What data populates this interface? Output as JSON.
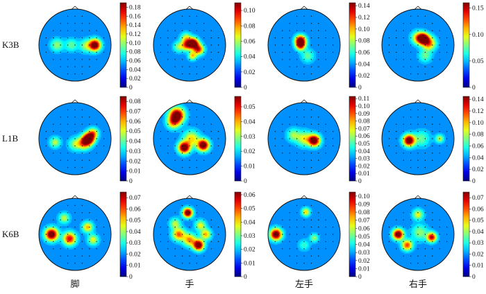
{
  "chart_data": {
    "type": "heatmap",
    "subtype": "eeg-scalp-topography-grid",
    "colormap": "jet",
    "rows": [
      "K3B",
      "L1B",
      "K6B"
    ],
    "cols": [
      "脚",
      "手",
      "左手",
      "右手"
    ],
    "panels": [
      {
        "row": 0,
        "col": 0,
        "vmin": 0,
        "vmax": 0.19,
        "ticks": [
          "0",
          "0.02",
          "0.04",
          "0.06",
          "0.08",
          "0.10",
          "0.12",
          "0.14",
          "0.16",
          "0.18"
        ],
        "blobs": [
          [
            0.55,
            0.0,
            1.0,
            0.11
          ],
          [
            0.3,
            0.02,
            0.3,
            0.12
          ],
          [
            -0.5,
            0.0,
            0.3,
            0.12
          ],
          [
            -0.1,
            0.0,
            0.25,
            0.12
          ]
        ]
      },
      {
        "row": 0,
        "col": 1,
        "vmin": 0,
        "vmax": 0.11,
        "ticks": [
          "0",
          "0.02",
          "0.04",
          "0.06",
          "0.08",
          "0.10"
        ],
        "blobs": [
          [
            0.1,
            -0.05,
            1.0,
            0.1
          ],
          [
            0.25,
            0.12,
            0.7,
            0.1
          ],
          [
            -0.08,
            0.0,
            0.6,
            0.1
          ],
          [
            0.08,
            0.3,
            0.45,
            0.08
          ],
          [
            -0.1,
            -0.2,
            0.35,
            0.1
          ],
          [
            -0.3,
            0.05,
            0.3,
            0.1
          ]
        ]
      },
      {
        "row": 0,
        "col": 2,
        "vmin": 0,
        "vmax": 0.145,
        "ticks": [
          "0",
          "0.02",
          "0.04",
          "0.06",
          "0.08",
          "0.10",
          "0.12",
          "0.14"
        ],
        "blobs": [
          [
            -0.1,
            -0.12,
            1.0,
            0.1
          ],
          [
            -0.1,
            0.02,
            0.6,
            0.09
          ],
          [
            0.1,
            0.3,
            0.25,
            0.12
          ]
        ]
      },
      {
        "row": 0,
        "col": 3,
        "vmin": 0,
        "vmax": 0.16,
        "ticks": [
          "0",
          "0.05",
          "0.10",
          "0.15"
        ],
        "blobs": [
          [
            0.15,
            -0.18,
            1.0,
            0.1
          ],
          [
            0.3,
            -0.05,
            0.6,
            0.13
          ],
          [
            0.0,
            -0.2,
            0.5,
            0.12
          ],
          [
            0.2,
            0.3,
            0.25,
            0.12
          ]
        ]
      },
      {
        "row": 1,
        "col": 0,
        "vmin": 0,
        "vmax": 0.085,
        "ticks": [
          "0",
          "0.01",
          "0.02",
          "0.03",
          "0.04",
          "0.05",
          "0.06",
          "0.07",
          "0.08"
        ],
        "blobs": [
          [
            0.38,
            0.0,
            1.0,
            0.11
          ],
          [
            0.25,
            0.12,
            0.6,
            0.12
          ],
          [
            0.5,
            -0.15,
            0.5,
            0.1
          ],
          [
            -0.55,
            0.1,
            0.35,
            0.1
          ],
          [
            0.0,
            0.15,
            0.3,
            0.12
          ]
        ]
      },
      {
        "row": 1,
        "col": 1,
        "vmin": 0,
        "vmax": 0.057,
        "ticks": [
          "0",
          "0.01",
          "0.02",
          "0.03",
          "0.04",
          "0.05"
        ],
        "blobs": [
          [
            -0.35,
            -0.65,
            1.0,
            0.14
          ],
          [
            -0.45,
            -0.45,
            0.5,
            0.12
          ],
          [
            -0.15,
            0.25,
            1.0,
            0.11
          ],
          [
            0.38,
            0.18,
            1.0,
            0.11
          ],
          [
            0.05,
            0.0,
            0.45,
            0.15
          ]
        ]
      },
      {
        "row": 1,
        "col": 2,
        "vmin": 0,
        "vmax": 0.113,
        "ticks": [
          "0",
          "0.01",
          "0.02",
          "0.03",
          "0.04",
          "0.05",
          "0.06",
          "0.07",
          "0.08",
          "0.09",
          "0.10",
          "0.11"
        ],
        "blobs": [
          [
            0.28,
            0.05,
            1.0,
            0.11
          ],
          [
            0.0,
            0.0,
            0.4,
            0.14
          ],
          [
            -0.3,
            -0.1,
            0.3,
            0.12
          ]
        ]
      },
      {
        "row": 1,
        "col": 3,
        "vmin": 0,
        "vmax": 0.145,
        "ticks": [
          "0",
          "0.02",
          "0.04",
          "0.06",
          "0.08",
          "0.10",
          "0.12",
          "0.14"
        ],
        "blobs": [
          [
            -0.25,
            0.05,
            1.0,
            0.11
          ],
          [
            0.6,
            0.0,
            0.35,
            0.08
          ],
          [
            0.1,
            0.0,
            0.25,
            0.15
          ]
        ]
      },
      {
        "row": 2,
        "col": 0,
        "vmin": 0,
        "vmax": 0.075,
        "ticks": [
          "0",
          "0.01",
          "0.02",
          "0.03",
          "0.04",
          "0.05",
          "0.06",
          "0.07"
        ],
        "blobs": [
          [
            -0.65,
            0.0,
            1.0,
            0.12
          ],
          [
            -0.15,
            0.12,
            0.75,
            0.12
          ],
          [
            0.35,
            -0.2,
            0.5,
            0.1
          ],
          [
            0.5,
            0.15,
            0.4,
            0.1
          ],
          [
            -0.3,
            -0.45,
            0.35,
            0.1
          ]
        ]
      },
      {
        "row": 2,
        "col": 1,
        "vmin": 0,
        "vmax": 0.062,
        "ticks": [
          "0",
          "0.01",
          "0.02",
          "0.03",
          "0.04",
          "0.05",
          "0.06"
        ],
        "blobs": [
          [
            -0.05,
            -0.6,
            1.0,
            0.09
          ],
          [
            0.25,
            0.3,
            1.0,
            0.1
          ],
          [
            -0.3,
            0.0,
            0.6,
            0.12
          ],
          [
            0.0,
            0.15,
            0.55,
            0.12
          ],
          [
            0.45,
            0.0,
            0.5,
            0.1
          ],
          [
            -0.4,
            -0.3,
            0.35,
            0.1
          ],
          [
            0.3,
            -0.25,
            0.4,
            0.1
          ]
        ]
      },
      {
        "row": 2,
        "col": 2,
        "vmin": 0,
        "vmax": 0.105,
        "ticks": [
          "0",
          "0.01",
          "0.02",
          "0.03",
          "0.04",
          "0.05",
          "0.06",
          "0.07",
          "0.08",
          "0.09",
          "0.10"
        ],
        "blobs": [
          [
            -0.78,
            0.0,
            1.0,
            0.11
          ],
          [
            0.05,
            -0.62,
            0.45,
            0.08
          ],
          [
            0.28,
            0.1,
            0.3,
            0.08
          ],
          [
            0.0,
            0.3,
            0.2,
            0.1
          ]
        ]
      },
      {
        "row": 2,
        "col": 3,
        "vmin": 0,
        "vmax": 0.075,
        "ticks": [
          "0",
          "0.01",
          "0.02",
          "0.03",
          "0.04",
          "0.05",
          "0.06",
          "0.07"
        ],
        "blobs": [
          [
            -0.55,
            0.0,
            1.0,
            0.1
          ],
          [
            -0.3,
            0.3,
            0.65,
            0.1
          ],
          [
            0.38,
            0.08,
            0.8,
            0.09
          ],
          [
            0.0,
            -0.55,
            0.4,
            0.1
          ],
          [
            0.05,
            -0.05,
            0.3,
            0.15
          ]
        ]
      }
    ]
  }
}
